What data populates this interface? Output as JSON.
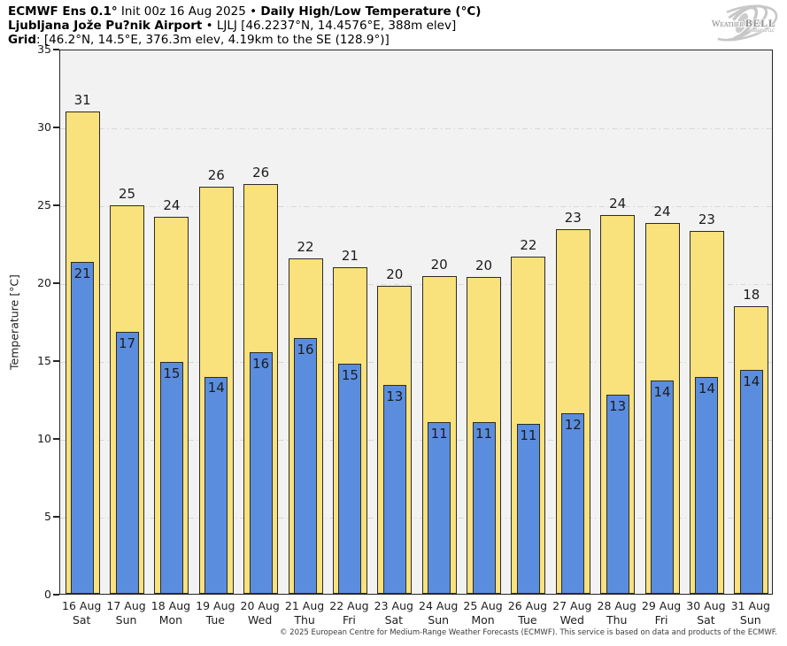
{
  "header": {
    "model": "ECMWF Ens 0.1°",
    "init": " Init 00z 16 Aug 2025 • ",
    "product": "Daily High/Low Temperature (°C)",
    "station": "Ljubljana Jože Pu?nik Airport",
    "station_details": " • LJLJ [46.2237°N, 14.4576°E, 388m elev]",
    "grid_label": "Grid",
    "grid_details": ": [46.2°N, 14.5°E, 376.3m elev, 4.19km to the SE (128.9°)]"
  },
  "logo": {
    "brand_weather": "Weather",
    "brand_bell": "BELL",
    "subtext": "Analytics LLC"
  },
  "footer": {
    "copyright": "© 2025 European Centre for Medium-Range Weather Forecasts (ECMWF). This service is based on data and products of the ECMWF."
  },
  "chart_data": {
    "type": "bar",
    "title": "ECMWF Ens 0.1° Init 00z 16 Aug 2025 • Daily High/Low Temperature (°C)",
    "subtitle": "Ljubljana Jože Pu?nik Airport • LJLJ",
    "xlabel": "",
    "ylabel": "Temperature [°C]",
    "ylim": [
      0,
      35
    ],
    "yticks": [
      0,
      5,
      10,
      15,
      20,
      25,
      30,
      35
    ],
    "grid": "horizontal dash-dot at 5°C intervals",
    "legend_position": "none",
    "plot_background": "#f2f2f2",
    "categories": [
      "16 Aug",
      "17 Aug",
      "18 Aug",
      "19 Aug",
      "20 Aug",
      "21 Aug",
      "22 Aug",
      "23 Aug",
      "24 Aug",
      "25 Aug",
      "26 Aug",
      "27 Aug",
      "28 Aug",
      "29 Aug",
      "30 Aug",
      "31 Aug"
    ],
    "weekdays": [
      "Sat",
      "Sun",
      "Mon",
      "Tue",
      "Wed",
      "Thu",
      "Fri",
      "Sat",
      "Sun",
      "Mon",
      "Tue",
      "Wed",
      "Thu",
      "Fri",
      "Sat",
      "Sun"
    ],
    "series": [
      {
        "name": "daily-high",
        "color": "#f9e17c",
        "edge_color": "#2b2b2b",
        "labels": [
          31,
          25,
          24,
          26,
          26,
          22,
          21,
          20,
          20,
          20,
          22,
          23,
          24,
          24,
          23,
          18
        ],
        "values": [
          30.95,
          24.95,
          24.2,
          26.15,
          26.3,
          21.55,
          20.95,
          19.75,
          20.4,
          20.35,
          21.65,
          23.4,
          24.3,
          23.8,
          23.3,
          18.45
        ]
      },
      {
        "name": "daily-low",
        "color": "#5b8ddf",
        "edge_color": "#2b2b2b",
        "labels": [
          21,
          17,
          15,
          14,
          16,
          16,
          15,
          13,
          11,
          11,
          11,
          12,
          13,
          14,
          14,
          14
        ],
        "values": [
          21.3,
          16.8,
          14.9,
          13.95,
          15.5,
          16.4,
          14.8,
          13.4,
          11.0,
          11.05,
          10.9,
          11.6,
          12.8,
          13.7,
          13.9,
          14.4
        ]
      }
    ]
  }
}
